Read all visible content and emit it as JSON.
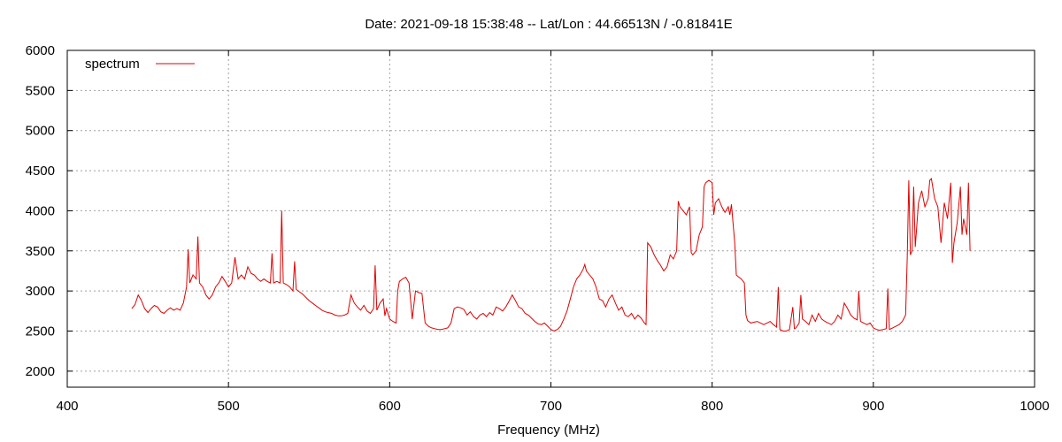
{
  "chart_data": {
    "type": "line",
    "title": "Date: 2021-09-18 15:38:48  --  Lat/Lon : 44.66513N / -0.81841E",
    "xlabel": "Frequency (MHz)",
    "ylabel": "",
    "xlim": [
      400,
      1000
    ],
    "ylim": [
      1800,
      6000
    ],
    "xticks": [
      400,
      500,
      600,
      700,
      800,
      900,
      1000
    ],
    "yticks": [
      2000,
      2500,
      3000,
      3500,
      4000,
      4500,
      5000,
      5500,
      6000
    ],
    "grid": true,
    "legend_position": "top-left",
    "series": [
      {
        "name": "spectrum",
        "color": "#e00000",
        "points": [
          [
            440,
            2780
          ],
          [
            442,
            2830
          ],
          [
            444,
            2950
          ],
          [
            446,
            2880
          ],
          [
            448,
            2780
          ],
          [
            450,
            2730
          ],
          [
            452,
            2780
          ],
          [
            454,
            2820
          ],
          [
            456,
            2800
          ],
          [
            458,
            2740
          ],
          [
            460,
            2720
          ],
          [
            462,
            2760
          ],
          [
            464,
            2790
          ],
          [
            466,
            2760
          ],
          [
            468,
            2780
          ],
          [
            470,
            2760
          ],
          [
            472,
            2850
          ],
          [
            474,
            3050
          ],
          [
            475,
            3520
          ],
          [
            476,
            3100
          ],
          [
            478,
            3200
          ],
          [
            480,
            3150
          ],
          [
            481,
            3680
          ],
          [
            482,
            3100
          ],
          [
            484,
            3050
          ],
          [
            486,
            2950
          ],
          [
            488,
            2900
          ],
          [
            490,
            2950
          ],
          [
            492,
            3050
          ],
          [
            494,
            3100
          ],
          [
            496,
            3180
          ],
          [
            498,
            3120
          ],
          [
            500,
            3050
          ],
          [
            502,
            3100
          ],
          [
            504,
            3420
          ],
          [
            506,
            3150
          ],
          [
            508,
            3200
          ],
          [
            510,
            3150
          ],
          [
            512,
            3300
          ],
          [
            514,
            3220
          ],
          [
            516,
            3200
          ],
          [
            518,
            3150
          ],
          [
            520,
            3120
          ],
          [
            522,
            3150
          ],
          [
            524,
            3120
          ],
          [
            526,
            3100
          ],
          [
            527,
            3470
          ],
          [
            528,
            3100
          ],
          [
            530,
            3120
          ],
          [
            532,
            3100
          ],
          [
            533,
            4000
          ],
          [
            534,
            3100
          ],
          [
            536,
            3080
          ],
          [
            538,
            3050
          ],
          [
            540,
            3000
          ],
          [
            541,
            3370
          ],
          [
            542,
            3020
          ],
          [
            544,
            2990
          ],
          [
            546,
            2960
          ],
          [
            548,
            2920
          ],
          [
            550,
            2880
          ],
          [
            552,
            2850
          ],
          [
            554,
            2820
          ],
          [
            556,
            2790
          ],
          [
            558,
            2760
          ],
          [
            560,
            2740
          ],
          [
            562,
            2730
          ],
          [
            564,
            2720
          ],
          [
            566,
            2700
          ],
          [
            568,
            2690
          ],
          [
            570,
            2690
          ],
          [
            572,
            2700
          ],
          [
            574,
            2720
          ],
          [
            576,
            2950
          ],
          [
            578,
            2850
          ],
          [
            580,
            2800
          ],
          [
            582,
            2760
          ],
          [
            584,
            2820
          ],
          [
            586,
            2750
          ],
          [
            588,
            2720
          ],
          [
            590,
            2780
          ],
          [
            591,
            3320
          ],
          [
            592,
            2760
          ],
          [
            594,
            2850
          ],
          [
            596,
            2900
          ],
          [
            597,
            2690
          ],
          [
            598,
            2780
          ],
          [
            600,
            2650
          ],
          [
            602,
            2620
          ],
          [
            604,
            2600
          ],
          [
            605,
            3000
          ],
          [
            606,
            3120
          ],
          [
            608,
            3150
          ],
          [
            610,
            3170
          ],
          [
            612,
            3100
          ],
          [
            614,
            2650
          ],
          [
            616,
            3000
          ],
          [
            618,
            2980
          ],
          [
            620,
            2970
          ],
          [
            622,
            2600
          ],
          [
            624,
            2560
          ],
          [
            626,
            2540
          ],
          [
            628,
            2530
          ],
          [
            630,
            2520
          ],
          [
            632,
            2520
          ],
          [
            634,
            2530
          ],
          [
            636,
            2540
          ],
          [
            638,
            2600
          ],
          [
            640,
            2780
          ],
          [
            642,
            2800
          ],
          [
            644,
            2790
          ],
          [
            646,
            2770
          ],
          [
            648,
            2700
          ],
          [
            650,
            2740
          ],
          [
            652,
            2680
          ],
          [
            654,
            2650
          ],
          [
            656,
            2700
          ],
          [
            658,
            2720
          ],
          [
            660,
            2680
          ],
          [
            662,
            2730
          ],
          [
            664,
            2700
          ],
          [
            666,
            2800
          ],
          [
            668,
            2780
          ],
          [
            670,
            2750
          ],
          [
            672,
            2800
          ],
          [
            674,
            2870
          ],
          [
            676,
            2950
          ],
          [
            678,
            2880
          ],
          [
            680,
            2800
          ],
          [
            682,
            2780
          ],
          [
            684,
            2720
          ],
          [
            686,
            2700
          ],
          [
            688,
            2660
          ],
          [
            690,
            2620
          ],
          [
            692,
            2590
          ],
          [
            694,
            2580
          ],
          [
            696,
            2600
          ],
          [
            698,
            2560
          ],
          [
            700,
            2520
          ],
          [
            702,
            2500
          ],
          [
            704,
            2520
          ],
          [
            706,
            2560
          ],
          [
            708,
            2650
          ],
          [
            710,
            2750
          ],
          [
            712,
            2900
          ],
          [
            714,
            3050
          ],
          [
            716,
            3150
          ],
          [
            718,
            3200
          ],
          [
            720,
            3270
          ],
          [
            721,
            3330
          ],
          [
            722,
            3250
          ],
          [
            724,
            3200
          ],
          [
            726,
            3150
          ],
          [
            728,
            3050
          ],
          [
            730,
            2900
          ],
          [
            732,
            2880
          ],
          [
            734,
            2800
          ],
          [
            736,
            2900
          ],
          [
            738,
            2950
          ],
          [
            740,
            2850
          ],
          [
            742,
            2760
          ],
          [
            744,
            2800
          ],
          [
            746,
            2700
          ],
          [
            748,
            2680
          ],
          [
            750,
            2720
          ],
          [
            752,
            2650
          ],
          [
            754,
            2700
          ],
          [
            756,
            2660
          ],
          [
            758,
            2600
          ],
          [
            759,
            2580
          ],
          [
            760,
            3600
          ],
          [
            762,
            3550
          ],
          [
            764,
            3450
          ],
          [
            766,
            3380
          ],
          [
            768,
            3320
          ],
          [
            770,
            3250
          ],
          [
            772,
            3300
          ],
          [
            774,
            3450
          ],
          [
            776,
            3400
          ],
          [
            778,
            3500
          ],
          [
            779,
            4120
          ],
          [
            780,
            4050
          ],
          [
            782,
            4000
          ],
          [
            784,
            3950
          ],
          [
            786,
            4050
          ],
          [
            787,
            3480
          ],
          [
            788,
            3450
          ],
          [
            790,
            3500
          ],
          [
            792,
            3700
          ],
          [
            794,
            3800
          ],
          [
            795,
            4300
          ],
          [
            796,
            4350
          ],
          [
            798,
            4380
          ],
          [
            800,
            4350
          ],
          [
            801,
            3950
          ],
          [
            802,
            4100
          ],
          [
            804,
            4150
          ],
          [
            806,
            4050
          ],
          [
            808,
            3980
          ],
          [
            810,
            4050
          ],
          [
            811,
            3950
          ],
          [
            812,
            4080
          ],
          [
            814,
            3600
          ],
          [
            815,
            3200
          ],
          [
            816,
            3180
          ],
          [
            818,
            3150
          ],
          [
            820,
            3100
          ],
          [
            821,
            2700
          ],
          [
            822,
            2630
          ],
          [
            824,
            2600
          ],
          [
            826,
            2610
          ],
          [
            828,
            2620
          ],
          [
            830,
            2600
          ],
          [
            832,
            2580
          ],
          [
            834,
            2600
          ],
          [
            836,
            2620
          ],
          [
            838,
            2580
          ],
          [
            840,
            2550
          ],
          [
            841,
            3050
          ],
          [
            842,
            2520
          ],
          [
            844,
            2500
          ],
          [
            846,
            2500
          ],
          [
            848,
            2520
          ],
          [
            850,
            2800
          ],
          [
            851,
            2530
          ],
          [
            852,
            2540
          ],
          [
            854,
            2600
          ],
          [
            855,
            2950
          ],
          [
            856,
            2650
          ],
          [
            858,
            2620
          ],
          [
            860,
            2580
          ],
          [
            862,
            2700
          ],
          [
            864,
            2620
          ],
          [
            866,
            2720
          ],
          [
            868,
            2650
          ],
          [
            870,
            2620
          ],
          [
            872,
            2600
          ],
          [
            874,
            2580
          ],
          [
            876,
            2620
          ],
          [
            878,
            2700
          ],
          [
            880,
            2650
          ],
          [
            882,
            2850
          ],
          [
            884,
            2780
          ],
          [
            886,
            2700
          ],
          [
            888,
            2660
          ],
          [
            890,
            2640
          ],
          [
            891,
            3000
          ],
          [
            892,
            2620
          ],
          [
            894,
            2600
          ],
          [
            896,
            2580
          ],
          [
            898,
            2600
          ],
          [
            900,
            2540
          ],
          [
            902,
            2520
          ],
          [
            904,
            2510
          ],
          [
            906,
            2520
          ],
          [
            908,
            2530
          ],
          [
            909,
            3030
          ],
          [
            910,
            2520
          ],
          [
            912,
            2540
          ],
          [
            914,
            2560
          ],
          [
            916,
            2580
          ],
          [
            918,
            2620
          ],
          [
            920,
            2700
          ],
          [
            921,
            3400
          ],
          [
            922,
            4380
          ],
          [
            923,
            3450
          ],
          [
            924,
            3500
          ],
          [
            925,
            4300
          ],
          [
            926,
            3550
          ],
          [
            928,
            4100
          ],
          [
            930,
            4250
          ],
          [
            932,
            4050
          ],
          [
            934,
            4150
          ],
          [
            935,
            4380
          ],
          [
            936,
            4400
          ],
          [
            938,
            4150
          ],
          [
            940,
            4050
          ],
          [
            942,
            3600
          ],
          [
            944,
            4100
          ],
          [
            946,
            3900
          ],
          [
            948,
            4350
          ],
          [
            949,
            3350
          ],
          [
            950,
            3600
          ],
          [
            952,
            3850
          ],
          [
            954,
            4300
          ],
          [
            955,
            3700
          ],
          [
            956,
            3900
          ],
          [
            958,
            3700
          ],
          [
            959,
            4350
          ],
          [
            960,
            3500
          ]
        ]
      }
    ]
  }
}
